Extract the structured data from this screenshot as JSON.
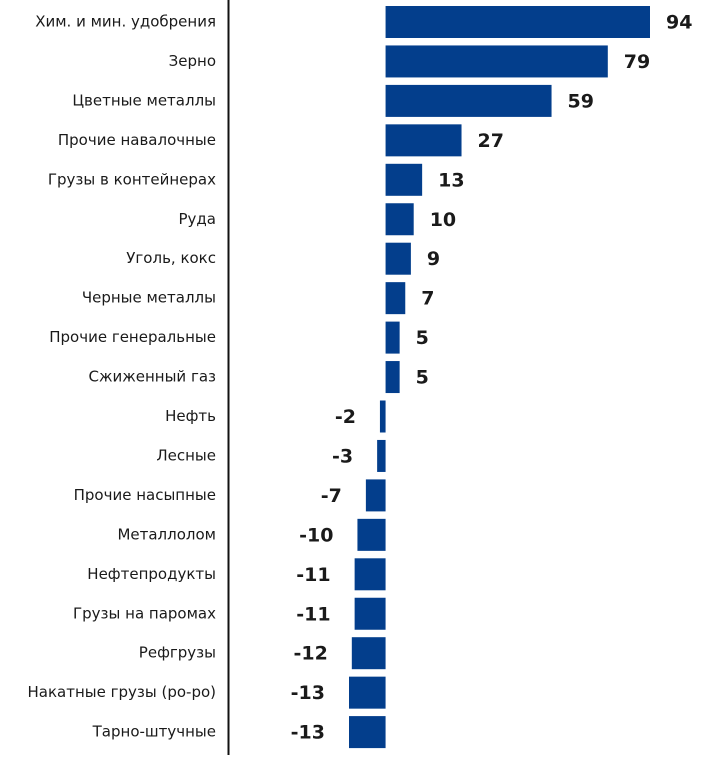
{
  "chart_data": {
    "type": "bar",
    "orientation": "horizontal",
    "color": "#033e8c",
    "categories": [
      "Хим. и мин. удобрения",
      "Зерно",
      "Цветные металлы",
      "Прочие навалочные",
      "Грузы в контейнерах",
      "Руда",
      "Уголь, кокс",
      "Черные металлы",
      "Прочие генеральные",
      "Сжиженный газ",
      "Нефть",
      "Лесные",
      "Прочие насыпные",
      "Металлолом",
      "Нефтепродукты",
      "Грузы на паромах",
      "Рефгрузы",
      "Накатные грузы (ро-ро)",
      "Тарно-штучные"
    ],
    "values": [
      94,
      79,
      59,
      27,
      13,
      10,
      9,
      7,
      5,
      5,
      -2,
      -3,
      -7,
      -10,
      -11,
      -11,
      -12,
      -13,
      -13
    ]
  }
}
